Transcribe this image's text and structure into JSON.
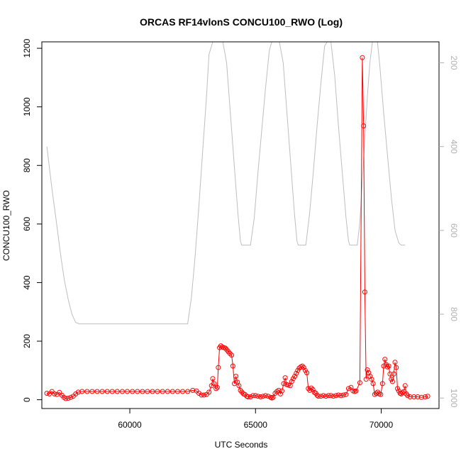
{
  "chart_data": {
    "type": "scatter",
    "title": "ORCAS RF14vlonS CONCU100_RWO (Log)",
    "xlabel": "UTC Seconds",
    "ylabel": "CONCU100_RWO",
    "xlim": [
      56500,
      72300
    ],
    "ylim": [
      -30,
      1222
    ],
    "x_ticks": [
      60000,
      65000,
      70000
    ],
    "y_ticks": [
      0,
      200,
      400,
      600,
      800,
      1000,
      1200
    ],
    "y2_lim": [
      1025,
      150
    ],
    "y2_ticks": [
      200,
      400,
      600,
      800,
      1000
    ],
    "grid": false,
    "colors": {
      "series": "#ff0000",
      "secondary": "#bebebe"
    },
    "series": [
      {
        "role": "primary",
        "style": "line-points",
        "points": [
          [
            56700,
            22
          ],
          [
            56800,
            20
          ],
          [
            56900,
            28
          ],
          [
            57000,
            20
          ],
          [
            57100,
            18
          ],
          [
            57200,
            25
          ],
          [
            57300,
            15
          ],
          [
            57380,
            8
          ],
          [
            57450,
            4
          ],
          [
            57550,
            5
          ],
          [
            57650,
            8
          ],
          [
            57750,
            12
          ],
          [
            57850,
            20
          ],
          [
            57950,
            26
          ],
          [
            58100,
            28
          ],
          [
            58300,
            28
          ],
          [
            58500,
            28
          ],
          [
            58700,
            28
          ],
          [
            58900,
            28
          ],
          [
            59100,
            28
          ],
          [
            59300,
            28
          ],
          [
            59500,
            28
          ],
          [
            59700,
            28
          ],
          [
            59900,
            28
          ],
          [
            60100,
            28
          ],
          [
            60300,
            28
          ],
          [
            60500,
            28
          ],
          [
            60700,
            28
          ],
          [
            60900,
            28
          ],
          [
            61100,
            28
          ],
          [
            61300,
            28
          ],
          [
            61500,
            28
          ],
          [
            61700,
            28
          ],
          [
            61900,
            28
          ],
          [
            62100,
            28
          ],
          [
            62300,
            28
          ],
          [
            62500,
            32
          ],
          [
            62650,
            30
          ],
          [
            62750,
            22
          ],
          [
            62850,
            16
          ],
          [
            62950,
            16
          ],
          [
            63050,
            18
          ],
          [
            63150,
            26
          ],
          [
            63250,
            48
          ],
          [
            63300,
            72
          ],
          [
            63350,
            55
          ],
          [
            63430,
            38
          ],
          [
            63480,
            42
          ],
          [
            63520,
            110
          ],
          [
            63570,
            178
          ],
          [
            63620,
            184
          ],
          [
            63680,
            180
          ],
          [
            63740,
            178
          ],
          [
            63800,
            176
          ],
          [
            63860,
            170
          ],
          [
            63920,
            164
          ],
          [
            63980,
            158
          ],
          [
            64050,
            152
          ],
          [
            64100,
            115
          ],
          [
            64160,
            55
          ],
          [
            64220,
            80
          ],
          [
            64280,
            60
          ],
          [
            64340,
            48
          ],
          [
            64400,
            32
          ],
          [
            64460,
            26
          ],
          [
            64520,
            20
          ],
          [
            64580,
            18
          ],
          [
            64650,
            12
          ],
          [
            64700,
            10
          ],
          [
            64800,
            10
          ],
          [
            64900,
            14
          ],
          [
            65000,
            14
          ],
          [
            65100,
            12
          ],
          [
            65200,
            10
          ],
          [
            65300,
            12
          ],
          [
            65400,
            14
          ],
          [
            65500,
            12
          ],
          [
            65600,
            8
          ],
          [
            65650,
            6
          ],
          [
            65700,
            8
          ],
          [
            65780,
            22
          ],
          [
            65850,
            28
          ],
          [
            65920,
            32
          ],
          [
            65990,
            20
          ],
          [
            66050,
            30
          ],
          [
            66120,
            55
          ],
          [
            66180,
            75
          ],
          [
            66240,
            52
          ],
          [
            66300,
            50
          ],
          [
            66380,
            48
          ],
          [
            66440,
            62
          ],
          [
            66500,
            72
          ],
          [
            66560,
            80
          ],
          [
            66620,
            90
          ],
          [
            66680,
            100
          ],
          [
            66740,
            108
          ],
          [
            66800,
            112
          ],
          [
            66860,
            115
          ],
          [
            66920,
            110
          ],
          [
            66980,
            100
          ],
          [
            67040,
            92
          ],
          [
            67100,
            38
          ],
          [
            67160,
            32
          ],
          [
            67220,
            40
          ],
          [
            67280,
            35
          ],
          [
            67340,
            25
          ],
          [
            67400,
            22
          ],
          [
            67450,
            15
          ],
          [
            67500,
            12
          ],
          [
            67600,
            12
          ],
          [
            67700,
            14
          ],
          [
            67800,
            12
          ],
          [
            67900,
            14
          ],
          [
            68000,
            14
          ],
          [
            68100,
            12
          ],
          [
            68200,
            14
          ],
          [
            68300,
            16
          ],
          [
            68400,
            14
          ],
          [
            68500,
            16
          ],
          [
            68600,
            18
          ],
          [
            68700,
            38
          ],
          [
            68800,
            42
          ],
          [
            68880,
            30
          ],
          [
            68950,
            28
          ],
          [
            69000,
            30
          ],
          [
            69150,
            58
          ],
          [
            69250,
            1168
          ],
          [
            69300,
            935
          ],
          [
            69350,
            368
          ],
          [
            69400,
            70
          ],
          [
            69450,
            102
          ],
          [
            69500,
            92
          ],
          [
            69560,
            80
          ],
          [
            69620,
            70
          ],
          [
            69680,
            55
          ],
          [
            69740,
            18
          ],
          [
            69800,
            22
          ],
          [
            69860,
            26
          ],
          [
            69920,
            20
          ],
          [
            69980,
            18
          ],
          [
            70050,
            55
          ],
          [
            70100,
            115
          ],
          [
            70150,
            138
          ],
          [
            70200,
            120
          ],
          [
            70250,
            112
          ],
          [
            70300,
            115
          ],
          [
            70350,
            88
          ],
          [
            70400,
            70
          ],
          [
            70450,
            62
          ],
          [
            70500,
            88
          ],
          [
            70550,
            128
          ],
          [
            70600,
            110
          ],
          [
            70650,
            38
          ],
          [
            70700,
            30
          ],
          [
            70750,
            22
          ],
          [
            70800,
            20
          ],
          [
            70850,
            24
          ],
          [
            70900,
            28
          ],
          [
            70950,
            48
          ],
          [
            71000,
            20
          ],
          [
            71050,
            14
          ],
          [
            71150,
            10
          ],
          [
            71300,
            10
          ],
          [
            71450,
            10
          ],
          [
            71600,
            8
          ],
          [
            71750,
            10
          ],
          [
            71850,
            12
          ]
        ]
      },
      {
        "role": "secondary",
        "style": "line",
        "points": [
          [
            56700,
            400
          ],
          [
            56900,
            500
          ],
          [
            57100,
            590
          ],
          [
            57250,
            660
          ],
          [
            57400,
            720
          ],
          [
            57550,
            765
          ],
          [
            57700,
            800
          ],
          [
            57850,
            820
          ],
          [
            58000,
            823
          ],
          [
            59000,
            823
          ],
          [
            60000,
            823
          ],
          [
            61000,
            823
          ],
          [
            62000,
            823
          ],
          [
            62300,
            823
          ],
          [
            62450,
            760
          ],
          [
            62600,
            660
          ],
          [
            62750,
            540
          ],
          [
            62900,
            410
          ],
          [
            63050,
            280
          ],
          [
            63150,
            180
          ],
          [
            63300,
            150
          ],
          [
            63500,
            150
          ],
          [
            63700,
            150
          ],
          [
            63850,
            200
          ],
          [
            64000,
            320
          ],
          [
            64150,
            440
          ],
          [
            64300,
            560
          ],
          [
            64400,
            625
          ],
          [
            64450,
            635
          ],
          [
            64600,
            635
          ],
          [
            64800,
            635
          ],
          [
            64950,
            570
          ],
          [
            65100,
            460
          ],
          [
            65250,
            360
          ],
          [
            65400,
            260
          ],
          [
            65550,
            170
          ],
          [
            65650,
            150
          ],
          [
            65800,
            150
          ],
          [
            65950,
            150
          ],
          [
            66100,
            200
          ],
          [
            66250,
            320
          ],
          [
            66400,
            440
          ],
          [
            66550,
            560
          ],
          [
            66650,
            625
          ],
          [
            66700,
            635
          ],
          [
            66850,
            635
          ],
          [
            67000,
            635
          ],
          [
            67150,
            560
          ],
          [
            67300,
            460
          ],
          [
            67450,
            350
          ],
          [
            67600,
            250
          ],
          [
            67750,
            160
          ],
          [
            67850,
            150
          ],
          [
            68000,
            150
          ],
          [
            68150,
            230
          ],
          [
            68300,
            350
          ],
          [
            68450,
            460
          ],
          [
            68600,
            570
          ],
          [
            68700,
            625
          ],
          [
            68750,
            635
          ],
          [
            68950,
            635
          ],
          [
            69050,
            635
          ],
          [
            69150,
            580
          ],
          [
            69250,
            480
          ],
          [
            69350,
            380
          ],
          [
            69450,
            280
          ],
          [
            69550,
            200
          ],
          [
            69650,
            150
          ],
          [
            69750,
            150
          ],
          [
            69850,
            150
          ],
          [
            69950,
            210
          ],
          [
            70100,
            320
          ],
          [
            70250,
            420
          ],
          [
            70400,
            520
          ],
          [
            70550,
            600
          ],
          [
            70700,
            630
          ],
          [
            70800,
            635
          ],
          [
            70950,
            635
          ]
        ]
      }
    ]
  }
}
